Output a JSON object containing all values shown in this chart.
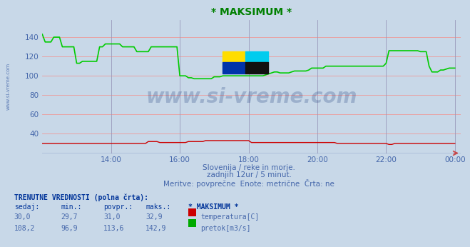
{
  "title": "* MAKSIMUM *",
  "title_color": "#008000",
  "bg_color": "#c8d8e8",
  "plot_bg_color": "#c8d8e8",
  "grid_color_h": "#ee9999",
  "grid_color_v": "#9999bb",
  "xlim": [
    0,
    144
  ],
  "ylim": [
    20,
    150
  ],
  "yticks": [
    40,
    60,
    80,
    100,
    120,
    140
  ],
  "xtick_labels": [
    "14:00",
    "16:00",
    "18:00",
    "20:00",
    "22:00",
    "00:00"
  ],
  "xtick_positions": [
    24,
    48,
    72,
    96,
    120,
    144
  ],
  "watermark": "www.si-vreme.com",
  "watermark_color": "#1a3a7a",
  "watermark_alpha": 0.25,
  "sub_text1": "Slovenija / reke in morje.",
  "sub_text2": "zadnjih 12ur / 5 minut.",
  "sub_text3": "Meritve: povprečne  Enote: metrične  Črta: ne",
  "sub_text_color": "#4466aa",
  "legend_title": "TRENUTNE VREDNOSTI (polna črta):",
  "legend_headers": [
    "sedaj:",
    "min.:",
    "povpr.:",
    "maks.:",
    "* MAKSIMUM *"
  ],
  "legend_row1": [
    "30,0",
    "29,7",
    "31,0",
    "32,9",
    "temperatura[C]"
  ],
  "legend_row2": [
    "108,2",
    "96,9",
    "113,6",
    "142,9",
    "pretok[m3/s]"
  ],
  "legend_color1": "#cc0000",
  "legend_color2": "#00aa00",
  "temp_color": "#cc0000",
  "flow_color": "#00cc00",
  "axis_color": "#4466aa",
  "temp_data_x": [
    0,
    1,
    2,
    3,
    4,
    5,
    6,
    7,
    8,
    9,
    10,
    11,
    12,
    13,
    14,
    15,
    16,
    17,
    18,
    19,
    20,
    21,
    22,
    23,
    24,
    25,
    26,
    27,
    28,
    29,
    30,
    31,
    32,
    33,
    34,
    35,
    36,
    37,
    38,
    39,
    40,
    41,
    42,
    43,
    44,
    45,
    46,
    47,
    48,
    49,
    50,
    51,
    52,
    53,
    54,
    55,
    56,
    57,
    58,
    59,
    60,
    61,
    62,
    63,
    64,
    65,
    66,
    67,
    68,
    69,
    70,
    71,
    72,
    73,
    74,
    75,
    76,
    77,
    78,
    79,
    80,
    81,
    82,
    83,
    84,
    85,
    86,
    87,
    88,
    89,
    90,
    91,
    92,
    93,
    94,
    95,
    96,
    97,
    98,
    99,
    100,
    101,
    102,
    103,
    104,
    105,
    106,
    107,
    108,
    109,
    110,
    111,
    112,
    113,
    114,
    115,
    116,
    117,
    118,
    119,
    120,
    121,
    122,
    123,
    124,
    125,
    126,
    127,
    128,
    129,
    130,
    131,
    132,
    133,
    134,
    135,
    136,
    137,
    138,
    139,
    140,
    141,
    142,
    143,
    144
  ],
  "temp_data_y": [
    30,
    30,
    30,
    30,
    30,
    30,
    30,
    30,
    30,
    30,
    30,
    30,
    30,
    30,
    30,
    30,
    30,
    30,
    30,
    30,
    30,
    30,
    30,
    30,
    30,
    30,
    30,
    30,
    30,
    30,
    30,
    30,
    30,
    30,
    30,
    30,
    30,
    32,
    32,
    32,
    32,
    31,
    31,
    31,
    31,
    31,
    31,
    31,
    31,
    31,
    31,
    32,
    32,
    32,
    32,
    32,
    32,
    33,
    33,
    33,
    33,
    33,
    33,
    33,
    33,
    33,
    33,
    33,
    33,
    33,
    33,
    33,
    33,
    31,
    31,
    31,
    31,
    31,
    31,
    31,
    31,
    31,
    31,
    31,
    31,
    31,
    31,
    31,
    31,
    31,
    31,
    31,
    31,
    31,
    31,
    31,
    31,
    31,
    31,
    31,
    31,
    31,
    31,
    30,
    30,
    30,
    30,
    30,
    30,
    30,
    30,
    30,
    30,
    30,
    30,
    30,
    30,
    30,
    30,
    30,
    30,
    29,
    29,
    30,
    30,
    30,
    30,
    30,
    30,
    30,
    30,
    30,
    30,
    30,
    30,
    30,
    30,
    30,
    30,
    30,
    30,
    30,
    30,
    30,
    30
  ],
  "flow_data_x": [
    0,
    1,
    2,
    3,
    4,
    5,
    6,
    7,
    8,
    9,
    10,
    11,
    12,
    13,
    14,
    15,
    16,
    17,
    18,
    19,
    20,
    21,
    22,
    23,
    24,
    25,
    26,
    27,
    28,
    29,
    30,
    31,
    32,
    33,
    34,
    35,
    36,
    37,
    38,
    39,
    40,
    41,
    42,
    43,
    44,
    45,
    46,
    47,
    48,
    49,
    50,
    51,
    52,
    53,
    54,
    55,
    56,
    57,
    58,
    59,
    60,
    61,
    62,
    63,
    64,
    65,
    66,
    67,
    68,
    69,
    70,
    71,
    72,
    73,
    74,
    75,
    76,
    77,
    78,
    79,
    80,
    81,
    82,
    83,
    84,
    85,
    86,
    87,
    88,
    89,
    90,
    91,
    92,
    93,
    94,
    95,
    96,
    97,
    98,
    99,
    100,
    101,
    102,
    103,
    104,
    105,
    106,
    107,
    108,
    109,
    110,
    111,
    112,
    113,
    114,
    115,
    116,
    117,
    118,
    119,
    120,
    121,
    122,
    123,
    124,
    125,
    126,
    127,
    128,
    129,
    130,
    131,
    132,
    133,
    134,
    135,
    136,
    137,
    138,
    139,
    140,
    141,
    142,
    143,
    144
  ],
  "flow_data_y": [
    143,
    135,
    135,
    135,
    140,
    140,
    140,
    130,
    130,
    130,
    130,
    130,
    113,
    113,
    115,
    115,
    115,
    115,
    115,
    115,
    130,
    130,
    133,
    133,
    133,
    133,
    133,
    133,
    130,
    130,
    130,
    130,
    130,
    125,
    125,
    125,
    125,
    125,
    130,
    130,
    130,
    130,
    130,
    130,
    130,
    130,
    130,
    130,
    100,
    100,
    100,
    98,
    98,
    97,
    97,
    97,
    97,
    97,
    97,
    97,
    99,
    99,
    99,
    100,
    100,
    100,
    100,
    100,
    100,
    100,
    100,
    100,
    100,
    100,
    100,
    100,
    100,
    100,
    101,
    102,
    103,
    104,
    104,
    103,
    103,
    103,
    103,
    104,
    105,
    105,
    105,
    105,
    105,
    106,
    108,
    108,
    108,
    108,
    108,
    110,
    110,
    110,
    110,
    110,
    110,
    110,
    110,
    110,
    110,
    110,
    110,
    110,
    110,
    110,
    110,
    110,
    110,
    110,
    110,
    110,
    113,
    126,
    126,
    126,
    126,
    126,
    126,
    126,
    126,
    126,
    126,
    126,
    125,
    125,
    125,
    110,
    104,
    104,
    104,
    106,
    106,
    107,
    108,
    108,
    108
  ]
}
